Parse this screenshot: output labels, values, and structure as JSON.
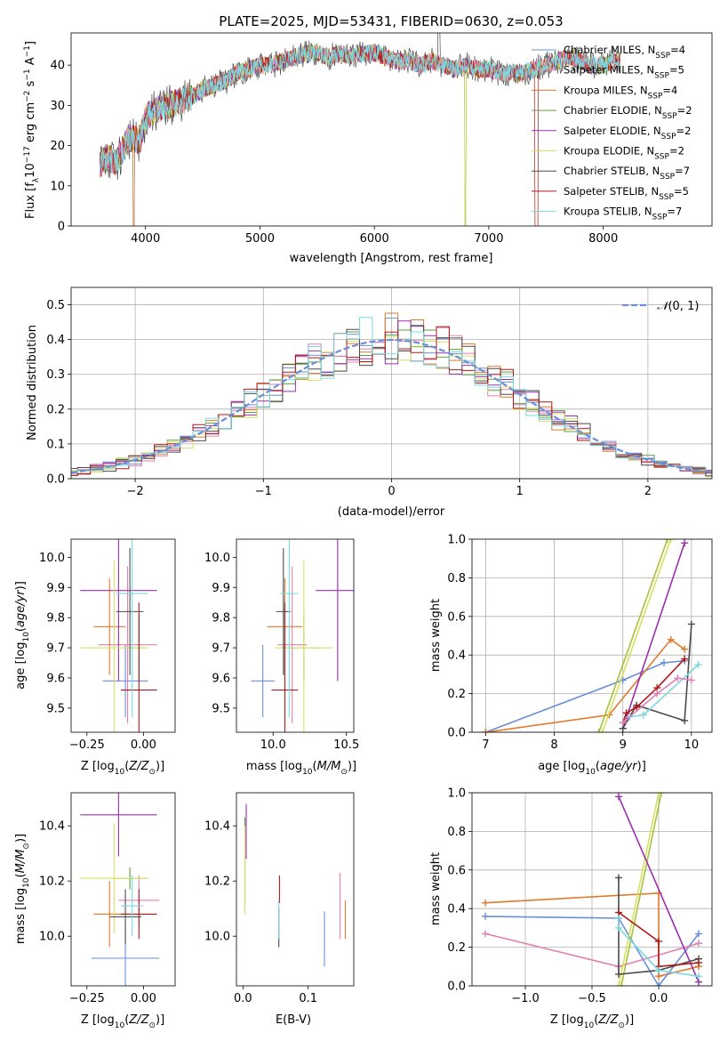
{
  "colors": {
    "blue": "#6a8fd8",
    "orange": "#e07a2c",
    "green": "#5aa03c",
    "olive": "#a8c23a",
    "purple": "#9a30b0",
    "yellow": "#d8e060",
    "gray": "#4a4a4a",
    "red": "#b01818",
    "cyan": "#7ad8e0",
    "pink": "#e080b0"
  },
  "chart_data": [
    {
      "type": "line",
      "title": "PLATE=2025, MJD=53431, FIBERID=0630, z=0.053",
      "xlabel": "wavelength [Angstrom, rest frame]",
      "ylabel": "Flux [f_λ 10^-17 erg cm^-2 s^-1 A^-1]",
      "xlim": [
        3350,
        8950
      ],
      "ylim": [
        0,
        48
      ],
      "xticks": [
        4000,
        5000,
        6000,
        7000,
        8000
      ],
      "yticks": [
        0,
        10,
        20,
        30,
        40
      ],
      "grid": false,
      "legend": "top-right",
      "continuum": {
        "x": [
          3600,
          3650,
          3750,
          3850,
          3950,
          4000,
          4100,
          4200,
          4300,
          4400,
          4500,
          4600,
          4700,
          4800,
          4900,
          5000,
          5100,
          5200,
          5300,
          5400,
          5500,
          5600,
          5700,
          5800,
          5900,
          6000,
          6100,
          6200,
          6300,
          6400,
          6500,
          6600,
          6700,
          6800,
          6900,
          7000,
          7100,
          7200,
          7300,
          7400,
          7500,
          7600,
          7700,
          7800,
          7900,
          8000,
          8100
        ],
        "y": [
          15,
          17,
          16,
          22,
          21,
          27,
          29,
          30,
          31,
          32,
          34,
          35,
          36,
          38,
          39,
          40,
          40,
          41,
          42,
          43,
          43,
          42,
          43,
          42,
          43,
          43,
          42,
          41,
          41,
          40,
          41,
          40,
          39,
          40,
          39,
          39,
          38,
          38,
          38,
          39,
          40,
          41,
          42,
          41,
          40,
          40,
          41
        ]
      },
      "series": [
        {
          "name": "Chabrier MILES, N_SSP=4",
          "color": "#6a8fd8"
        },
        {
          "name": "Salpeter MILES, N_SSP=5",
          "color": "#e080b0"
        },
        {
          "name": "Kroupa MILES, N_SSP=4",
          "color": "#e07a2c"
        },
        {
          "name": "Chabrier ELODIE, N_SSP=2",
          "color": "#5aa03c"
        },
        {
          "name": "Salpeter ELODIE, N_SSP=2",
          "color": "#9a30b0"
        },
        {
          "name": "Kroupa ELODIE, N_SSP=2",
          "color": "#d8e060"
        },
        {
          "name": "Chabrier STELIB, N_SSP=7",
          "color": "#4a4a4a"
        },
        {
          "name": "Salpeter STELIB, N_SSP=5",
          "color": "#b01818"
        },
        {
          "name": "Kroupa STELIB, N_SSP=7",
          "color": "#7ad8e0"
        }
      ]
    },
    {
      "type": "line",
      "xlabel": "(data-model)/error",
      "ylabel": "Normed distribution",
      "xlim": [
        -2.5,
        2.5
      ],
      "ylim": [
        0,
        0.55
      ],
      "xticks": [
        -2,
        -1,
        0,
        1,
        2
      ],
      "yticks": [
        0.0,
        0.1,
        0.2,
        0.3,
        0.4,
        0.5
      ],
      "grid": true,
      "legend": "top-right",
      "legend_label": "N(0,1)",
      "bin_width": 0.1
    },
    {
      "type": "scatter",
      "xlabel": "Z [log10(Z/Z⊙)]",
      "ylabel": "age  [log10(age/yr)]",
      "xlim": [
        -0.32,
        0.14
      ],
      "ylim": [
        9.42,
        10.06
      ],
      "xticks": [
        -0.25,
        0.0
      ],
      "yticks": [
        9.5,
        9.6,
        9.7,
        9.8,
        9.9,
        10.0
      ],
      "points": [
        {
          "x": -0.08,
          "y": 9.59,
          "xerr": 0.1,
          "yerr": 0.12,
          "color": "#6a8fd8"
        },
        {
          "x": -0.07,
          "y": 9.71,
          "xerr": 0.13,
          "yerr": 0.26,
          "color": "#e080b0"
        },
        {
          "x": -0.15,
          "y": 9.77,
          "xerr": 0.07,
          "yerr": 0.16,
          "color": "#e07a2c"
        },
        {
          "x": -0.02,
          "y": 9.7,
          "xerr": 0.03,
          "yerr": 0.11,
          "color": "#5aa03c"
        },
        {
          "x": -0.11,
          "y": 9.89,
          "xerr": 0.17,
          "yerr": 0.3,
          "color": "#9a30b0"
        },
        {
          "x": -0.13,
          "y": 9.7,
          "xerr": 0.15,
          "yerr": 0.29,
          "color": "#d8e060"
        },
        {
          "x": -0.06,
          "y": 9.82,
          "xerr": 0.06,
          "yerr": 0.21,
          "color": "#4a4a4a"
        },
        {
          "x": -0.02,
          "y": 9.56,
          "xerr": 0.08,
          "yerr": 0.29,
          "color": "#b01818"
        },
        {
          "x": -0.05,
          "y": 9.88,
          "xerr": 0.07,
          "yerr": 0.41,
          "color": "#7ad8e0"
        }
      ]
    },
    {
      "type": "scatter",
      "xlabel": "mass [log10(M/M⊙)]",
      "ylabel": "",
      "xlim": [
        9.75,
        10.55
      ],
      "ylim": [
        9.42,
        10.06
      ],
      "xticks": [
        10.0,
        10.5
      ],
      "yticks": [
        9.5,
        9.6,
        9.7,
        9.8,
        9.9,
        10.0
      ],
      "points": [
        {
          "x": 9.93,
          "y": 9.59,
          "xerr": 0.08,
          "yerr": 0.12,
          "color": "#6a8fd8"
        },
        {
          "x": 10.13,
          "y": 9.71,
          "xerr": 0.1,
          "yerr": 0.26,
          "color": "#e080b0"
        },
        {
          "x": 10.08,
          "y": 9.77,
          "xerr": 0.12,
          "yerr": 0.16,
          "color": "#e07a2c"
        },
        {
          "x": 10.21,
          "y": 9.7,
          "xerr": 0.13,
          "yerr": 0.11,
          "color": "#5aa03c"
        },
        {
          "x": 10.44,
          "y": 9.89,
          "xerr": 0.15,
          "yerr": 0.3,
          "color": "#9a30b0"
        },
        {
          "x": 10.21,
          "y": 9.7,
          "xerr": 0.2,
          "yerr": 0.29,
          "color": "#d8e060"
        },
        {
          "x": 10.07,
          "y": 9.82,
          "xerr": 0.05,
          "yerr": 0.21,
          "color": "#4a4a4a"
        },
        {
          "x": 10.08,
          "y": 9.56,
          "xerr": 0.09,
          "yerr": 0.29,
          "color": "#b01818"
        },
        {
          "x": 10.11,
          "y": 9.88,
          "xerr": 0.06,
          "yerr": 0.41,
          "color": "#7ad8e0"
        }
      ]
    },
    {
      "type": "line",
      "xlabel": "age  [log10(age/yr)]",
      "ylabel": "mass weight",
      "xlim": [
        6.8,
        10.3
      ],
      "ylim": [
        0,
        1
      ],
      "xticks": [
        7,
        8,
        9,
        10
      ],
      "yticks": [
        0.0,
        0.2,
        0.4,
        0.6,
        0.8,
        1.0
      ],
      "grid": true,
      "series": [
        {
          "color": "#6a8fd8",
          "x": [
            7.0,
            9.0,
            9.6,
            9.9
          ],
          "y": [
            0.0,
            0.27,
            0.36,
            0.37
          ]
        },
        {
          "color": "#e07a2c",
          "x": [
            7.0,
            8.8,
            9.7,
            9.9
          ],
          "y": [
            0.0,
            0.09,
            0.48,
            0.43
          ]
        },
        {
          "color": "#d8e060",
          "x": [
            8.7,
            9.7
          ],
          "y": [
            0.0,
            1.0
          ]
        },
        {
          "color": "#a8c23a",
          "x": [
            8.65,
            9.65
          ],
          "y": [
            0.0,
            1.0
          ]
        },
        {
          "color": "#9a30b0",
          "x": [
            9.0,
            9.9
          ],
          "y": [
            0.02,
            0.98
          ]
        },
        {
          "color": "#4a4a4a",
          "x": [
            9.0,
            9.2,
            9.9,
            10.0
          ],
          "y": [
            0.02,
            0.14,
            0.06,
            0.56
          ]
        },
        {
          "color": "#b01818",
          "x": [
            9.0,
            9.05,
            9.2,
            9.5,
            9.9
          ],
          "y": [
            0.05,
            0.1,
            0.13,
            0.23,
            0.38
          ]
        },
        {
          "color": "#7ad8e0",
          "x": [
            9.0,
            9.1,
            9.3,
            10.1
          ],
          "y": [
            0.05,
            0.08,
            0.09,
            0.35
          ]
        },
        {
          "color": "#e080b0",
          "x": [
            9.0,
            9.5,
            9.8,
            10.0
          ],
          "y": [
            0.05,
            0.2,
            0.28,
            0.27
          ]
        }
      ]
    },
    {
      "type": "scatter",
      "xlabel": "Z [log10(Z/Z⊙)]",
      "ylabel": "mass [log10(M/M⊙)]",
      "xlim": [
        -0.32,
        0.14
      ],
      "ylim": [
        9.82,
        10.52
      ],
      "xticks": [
        -0.25,
        0.0
      ],
      "yticks": [
        10.0,
        10.2,
        10.4
      ],
      "points": [
        {
          "x": -0.08,
          "y": 9.92,
          "xerr": 0.15,
          "yerr": 0.12,
          "color": "#6a8fd8"
        },
        {
          "x": -0.02,
          "y": 10.13,
          "xerr": 0.09,
          "yerr": 0.09,
          "color": "#e080b0"
        },
        {
          "x": -0.15,
          "y": 10.08,
          "xerr": 0.07,
          "yerr": 0.12,
          "color": "#e07a2c"
        },
        {
          "x": -0.06,
          "y": 10.21,
          "xerr": 0.08,
          "yerr": 0.04,
          "color": "#5aa03c"
        },
        {
          "x": -0.11,
          "y": 10.44,
          "xerr": 0.17,
          "yerr": 0.15,
          "color": "#9a30b0"
        },
        {
          "x": -0.13,
          "y": 10.21,
          "xerr": 0.15,
          "yerr": 0.2,
          "color": "#d8e060"
        },
        {
          "x": -0.08,
          "y": 10.07,
          "xerr": 0.07,
          "yerr": 0.1,
          "color": "#4a4a4a"
        },
        {
          "x": -0.02,
          "y": 10.08,
          "xerr": 0.08,
          "yerr": 0.09,
          "color": "#b01818"
        },
        {
          "x": -0.05,
          "y": 10.11,
          "xerr": 0.05,
          "yerr": 0.11,
          "color": "#7ad8e0"
        }
      ]
    },
    {
      "type": "scatter",
      "xlabel": "E(B-V)",
      "ylabel": "",
      "xlim": [
        -0.01,
        0.17
      ],
      "ylim": [
        9.82,
        10.52
      ],
      "xticks": [
        0.0,
        0.1
      ],
      "yticks": [
        10.0,
        10.2,
        10.4
      ],
      "points": [
        {
          "x": 0.125,
          "y": 9.99,
          "yerr": 0.1,
          "color": "#6a8fd8"
        },
        {
          "x": 0.149,
          "y": 10.11,
          "yerr": 0.12,
          "color": "#e080b0"
        },
        {
          "x": 0.157,
          "y": 10.06,
          "yerr": 0.07,
          "color": "#e07a2c"
        },
        {
          "x": 0.003,
          "y": 10.27,
          "yerr": 0.16,
          "color": "#5aa03c"
        },
        {
          "x": 0.005,
          "y": 10.38,
          "yerr": 0.1,
          "color": "#9a30b0"
        },
        {
          "x": 0.003,
          "y": 10.24,
          "yerr": 0.16,
          "color": "#d8e060"
        },
        {
          "x": 0.055,
          "y": 10.03,
          "yerr": 0.07,
          "color": "#4a4a4a"
        },
        {
          "x": 0.056,
          "y": 10.17,
          "yerr": 0.05,
          "color": "#b01818"
        },
        {
          "x": 0.055,
          "y": 10.06,
          "yerr": 0.07,
          "color": "#7ad8e0"
        }
      ]
    },
    {
      "type": "line",
      "xlabel": "Z [log10(Z/Z⊙)]",
      "ylabel": "mass weight",
      "xlim": [
        -1.4,
        0.4
      ],
      "ylim": [
        0,
        1
      ],
      "xticks": [
        -1.0,
        -0.5,
        0.0
      ],
      "yticks": [
        0.0,
        0.2,
        0.4,
        0.6,
        0.8,
        1.0
      ],
      "grid": true,
      "series": [
        {
          "color": "#e07a2c",
          "x": [
            -1.3,
            0.0,
            0.0,
            0.3
          ],
          "y": [
            0.43,
            0.48,
            0.05,
            0.1
          ]
        },
        {
          "color": "#6a8fd8",
          "x": [
            -1.3,
            -0.3,
            0.0,
            0.3
          ],
          "y": [
            0.36,
            0.35,
            0.0,
            0.27
          ]
        },
        {
          "color": "#e080b0",
          "x": [
            -1.3,
            -0.3,
            0.3
          ],
          "y": [
            0.27,
            0.1,
            0.22
          ]
        },
        {
          "color": "#d8e060",
          "x": [
            -0.3,
            0.0
          ],
          "y": [
            0.0,
            1.0
          ]
        },
        {
          "color": "#a8c23a",
          "x": [
            -0.28,
            0.02
          ],
          "y": [
            0.0,
            1.0
          ]
        },
        {
          "color": "#9a30b0",
          "x": [
            -0.3,
            0.3
          ],
          "y": [
            0.98,
            0.02
          ]
        },
        {
          "color": "#4a4a4a",
          "x": [
            -0.3,
            -0.3,
            0.0,
            0.3
          ],
          "y": [
            0.56,
            0.06,
            0.08,
            0.14
          ]
        },
        {
          "color": "#b01818",
          "x": [
            -0.3,
            0.0,
            0.0,
            0.3
          ],
          "y": [
            0.38,
            0.23,
            0.1,
            0.12
          ]
        },
        {
          "color": "#7ad8e0",
          "x": [
            -0.3,
            -0.3,
            0.0,
            0.3
          ],
          "y": [
            0.35,
            0.3,
            0.08,
            0.05
          ]
        }
      ]
    }
  ]
}
